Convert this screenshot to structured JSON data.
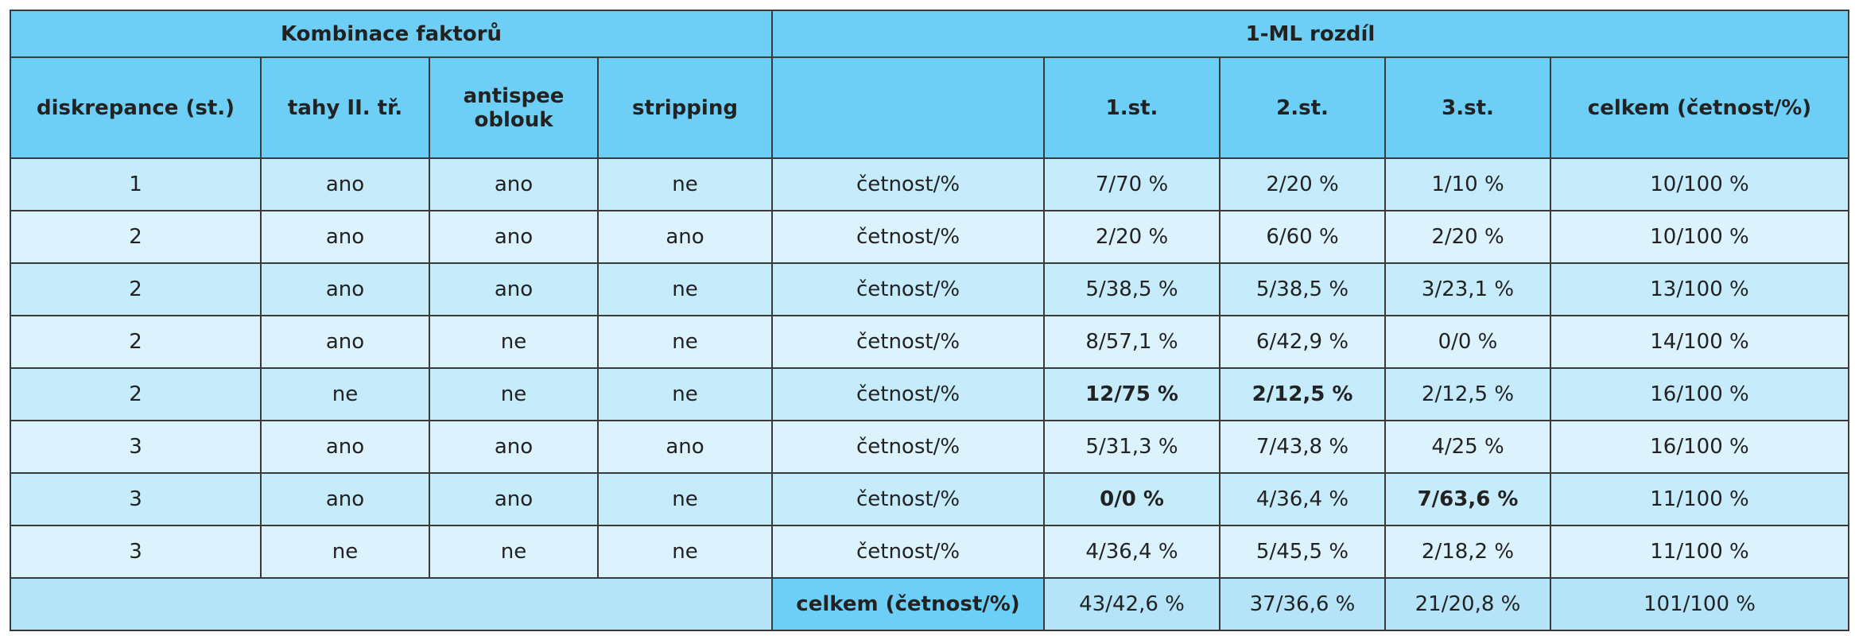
{
  "table": {
    "group_headers": [
      "Kombinace faktorů",
      "1-ML rozdíl"
    ],
    "factor_columns": [
      "diskrepance (st.)",
      "tahy II. tř.",
      "antispee oblouk",
      "stripping"
    ],
    "result_columns": [
      "1.st.",
      "2.st.",
      "3.st.",
      "celkem (četnost/%)"
    ],
    "rows": [
      [
        "1",
        "ano",
        "ano",
        "ne",
        "četnost/%",
        "7/70 %",
        "2/20 %",
        "1/10 %",
        "10/100 %"
      ],
      [
        "2",
        "ano",
        "ano",
        "ano",
        "četnost/%",
        "2/20 %",
        "6/60 %",
        "2/20 %",
        "10/100 %"
      ],
      [
        "2",
        "ano",
        "ano",
        "ne",
        "četnost/%",
        "5/38,5 %",
        "5/38,5 %",
        "3/23,1 %",
        "13/100 %"
      ],
      [
        "2",
        "ano",
        "ne",
        "ne",
        "četnost/%",
        "8/57,1 %",
        "6/42,9 %",
        "0/0 %",
        "14/100 %"
      ],
      [
        "2",
        "ne",
        "ne",
        "ne",
        "četnost/%",
        "12/75 %",
        "2/12,5 %",
        "2/12,5 %",
        "16/100 %"
      ],
      [
        "3",
        "ano",
        "ano",
        "ano",
        "četnost/%",
        "5/31,3 %",
        "7/43,8 %",
        "4/25 %",
        "16/100 %"
      ],
      [
        "3",
        "ano",
        "ano",
        "ne",
        "četnost/%",
        "0/0 %",
        "4/36,4 %",
        "7/63,6 %",
        "11/100 %"
      ],
      [
        "3",
        "ne",
        "ne",
        "ne",
        "četnost/%",
        "4/36,4 %",
        "5/45,5 %",
        "2/18,2 %",
        "11/100 %"
      ]
    ],
    "total": {
      "label": "celkem (četnost/%)",
      "values": [
        "43/42,6 %",
        "37/36,6 %",
        "21/20,8 %",
        "101/100 %"
      ]
    }
  }
}
